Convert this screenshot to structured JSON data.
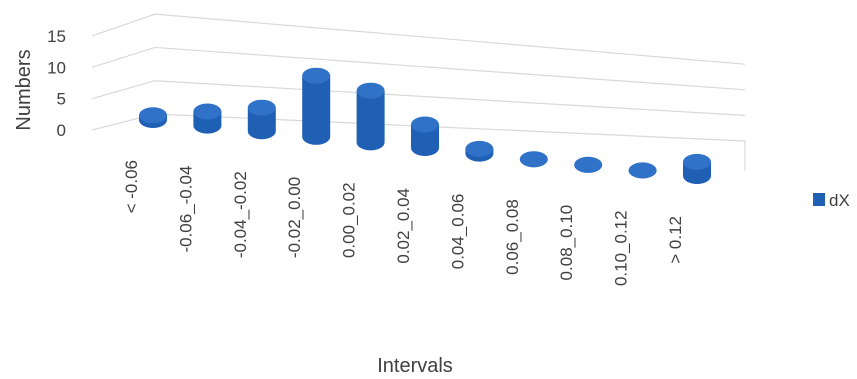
{
  "chart_data": {
    "type": "bar",
    "style": "3d-cylinder",
    "categories": [
      "< -0.06",
      "-0.06_-0.04",
      "-0.04_-0.02",
      "-0.02_0.00",
      "0.00_0.02",
      "0.02_0.04",
      "0.04_0.06",
      "0.06_0.08",
      "0.08_0.10",
      "0.10_0.12",
      "> 0.12"
    ],
    "series": [
      {
        "name": "dX",
        "color": "#1f5fb4",
        "values": [
          1,
          3,
          5,
          13,
          11,
          5,
          1,
          0,
          0,
          0,
          3
        ]
      }
    ],
    "ylabel": "Numbers",
    "xlabel": "Intervals",
    "ylim": [
      0,
      15
    ],
    "yticks": [
      "0",
      "5",
      "10",
      "15"
    ],
    "grid": true,
    "legend_position": "right"
  }
}
